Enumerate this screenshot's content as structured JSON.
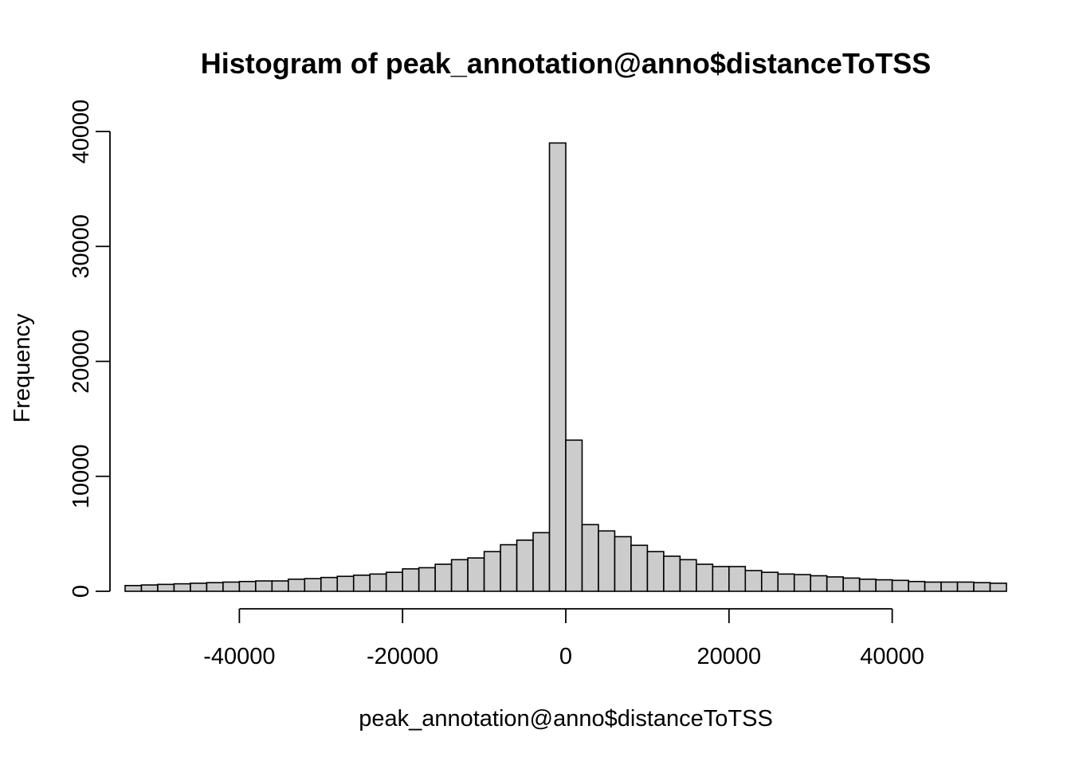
{
  "chart_data": {
    "type": "bar",
    "title": "Histogram of peak_annotation@anno$distanceToTSS",
    "xlabel": "peak_annotation@anno$distanceToTSS",
    "ylabel": "Frequency",
    "bin_width": 2000,
    "x_start": -54000,
    "x_ticks": [
      -40000,
      -20000,
      0,
      20000,
      40000
    ],
    "x_tick_labels": [
      "-40000",
      "-20000",
      "0",
      "20000",
      "40000"
    ],
    "y_ticks": [
      0,
      10000,
      20000,
      30000,
      40000
    ],
    "y_tick_labels": [
      "0",
      "10000",
      "20000",
      "30000",
      "40000"
    ],
    "xlim": [
      -54000,
      54000
    ],
    "ylim": [
      0,
      40000
    ],
    "grid": false,
    "values": [
      500,
      550,
      600,
      650,
      700,
      750,
      800,
      850,
      900,
      900,
      1050,
      1100,
      1200,
      1300,
      1400,
      1500,
      1650,
      1950,
      2050,
      2350,
      2750,
      2900,
      3450,
      4050,
      4450,
      5100,
      39000,
      13150,
      5800,
      5250,
      4750,
      4000,
      3450,
      3050,
      2750,
      2350,
      2150,
      2150,
      1800,
      1650,
      1500,
      1450,
      1350,
      1250,
      1150,
      1050,
      1000,
      950,
      850,
      800,
      800,
      800,
      750,
      700
    ]
  },
  "colors": {
    "bar_fill": "#cccccc",
    "bar_stroke": "#000000",
    "background": "#ffffff"
  }
}
